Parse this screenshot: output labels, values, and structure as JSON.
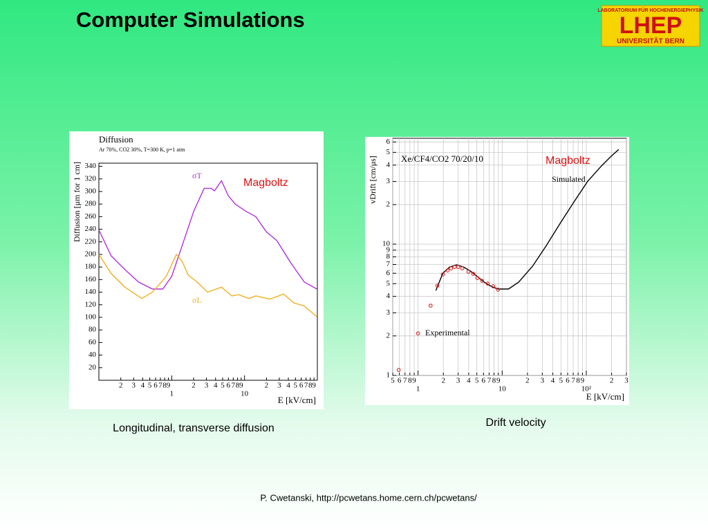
{
  "title": "Computer Simulations",
  "logo": {
    "top": "LABORATORIUM FÜR HOCHENERGIEPHYSIK",
    "main": "LHEP",
    "bottom": "UNIVERSITÄT BERN"
  },
  "captions": [
    "Longitudinal, transverse diffusion",
    "Drift velocity"
  ],
  "footer": "P. Cwetanski, http://pcwetans.home.cern.ch/pcwetans/",
  "chart_data": [
    {
      "type": "line",
      "title": "Diffusion",
      "subtitle": "Ar 70%, CO2 30%, T=300 K, p=1 atm",
      "ylabel": "Diffusion [μm for 1 cm]",
      "xlabel": "E [kV/cm]",
      "xlog": true,
      "ylog": false,
      "grid": false,
      "xlim": [
        0.1,
        100
      ],
      "ylim": [
        0,
        345
      ],
      "xticks": [
        {
          "value": 0.2,
          "label": "2"
        },
        {
          "value": 0.3,
          "label": "3"
        },
        {
          "value": 0.4,
          "label": "4"
        },
        {
          "value": 0.5,
          "label": "5"
        },
        {
          "value": 0.6,
          "label": "6"
        },
        {
          "value": 0.7,
          "label": "7"
        },
        {
          "value": 0.8,
          "label": "8"
        },
        {
          "value": 0.9,
          "label": "9"
        },
        1,
        2,
        3,
        4,
        5,
        6,
        7,
        8,
        9,
        10,
        {
          "value": 20,
          "label": "2"
        },
        {
          "value": 30,
          "label": "3"
        },
        {
          "value": 40,
          "label": "4"
        },
        {
          "value": 50,
          "label": "5"
        },
        {
          "value": 60,
          "label": "6"
        },
        {
          "value": 70,
          "label": "7"
        },
        {
          "value": 80,
          "label": "8"
        },
        {
          "value": 90,
          "label": "9"
        }
      ],
      "yticks": [
        20,
        40,
        60,
        80,
        100,
        120,
        140,
        160,
        180,
        200,
        220,
        240,
        260,
        280,
        300,
        320,
        340
      ],
      "annotations": [
        "Magboltz"
      ],
      "series": [
        {
          "name": "σT",
          "color": "#b030e0",
          "mode": "line",
          "x": [
            0.1,
            0.147,
            0.227,
            0.351,
            0.543,
            0.753,
            1,
            1.45,
            2.01,
            2.79,
            3.47,
            3.87,
            4.82,
            6.0,
            7.45,
            10.3,
            14.3,
            19.9,
            27.7,
            42.9,
            66.3,
            98.5
          ],
          "values": [
            239,
            198,
            176,
            156,
            145,
            145,
            165,
            220,
            269,
            305,
            305,
            301,
            317,
            293,
            280,
            269,
            260,
            236,
            222,
            187,
            156,
            145
          ]
        },
        {
          "name": "σL",
          "color": "#f0b020",
          "mode": "line",
          "x": [
            0.1,
            0.147,
            0.227,
            0.39,
            0.543,
            0.84,
            1.16,
            1.39,
            1.69,
            2.24,
            3.11,
            4.82,
            6.7,
            8.3,
            11.5,
            14.3,
            22.2,
            34.4,
            47.6,
            66.3,
            98.5
          ],
          "values": [
            200,
            170,
            148,
            130,
            140,
            165,
            200,
            189,
            167,
            156,
            140,
            148,
            134,
            136,
            130,
            134,
            129,
            137,
            123,
            118,
            101
          ]
        }
      ]
    },
    {
      "type": "line",
      "title": "Xe/CF4/CO2 70/20/10",
      "ylabel": "vDrift [cm/μs]",
      "xlabel": "E [kV/cm]",
      "xlog": true,
      "ylog": true,
      "grid": true,
      "xlim": [
        0.5,
        300
      ],
      "ylim": [
        1,
        64
      ],
      "xticks": [
        {
          "value": 0.5,
          "label": "5"
        },
        {
          "value": 0.6,
          "label": "6"
        },
        {
          "value": 0.7,
          "label": "7"
        },
        {
          "value": 0.8,
          "label": "8"
        },
        {
          "value": 0.9,
          "label": "9"
        },
        1,
        2,
        3,
        4,
        5,
        6,
        7,
        8,
        9,
        10,
        {
          "value": 20,
          "label": "2"
        },
        {
          "value": 30,
          "label": "3"
        },
        {
          "value": 40,
          "label": "4"
        },
        {
          "value": 50,
          "label": "5"
        },
        {
          "value": 60,
          "label": "6"
        },
        {
          "value": 70,
          "label": "7"
        },
        {
          "value": 80,
          "label": "8"
        },
        {
          "value": 90,
          "label": "9"
        },
        {
          "value": 100,
          "label": "10²"
        },
        {
          "value": 200,
          "label": "2"
        },
        {
          "value": 300,
          "label": "3"
        }
      ],
      "yticks": [
        1,
        2,
        3,
        4,
        5,
        6,
        7,
        8,
        9,
        10,
        {
          "value": 20,
          "label": "2"
        },
        {
          "value": 30,
          "label": "3"
        },
        {
          "value": 40,
          "label": "4"
        },
        {
          "value": 50,
          "label": "5"
        },
        {
          "value": 60,
          "label": "6"
        }
      ],
      "annotations": [
        "Magboltz"
      ],
      "series": [
        {
          "name": "Simulated",
          "color": "#000000",
          "mode": "line",
          "x": [
            1.63,
            1.97,
            2.38,
            2.88,
            3.47,
            4.2,
            5.07,
            6.12,
            7.39,
            8.93,
            11.9,
            15.7,
            23.0,
            33.5,
            48.9,
            71.2,
            104,
            151,
            201,
            243
          ],
          "values": [
            4.44,
            6.0,
            6.7,
            6.95,
            6.7,
            6.23,
            5.66,
            5.13,
            4.77,
            4.55,
            4.55,
            5.13,
            6.79,
            9.76,
            14.4,
            20.9,
            30.1,
            39.3,
            47.2,
            52.6
          ]
        },
        {
          "name": "Experimental",
          "color": "#e02020",
          "mode": "markers",
          "x": [
            0.589,
            1,
            1.41,
            1.7,
            1.97,
            2.25,
            2.47,
            2.72,
            2.99,
            3.35,
            3.97,
            4.53,
            5.07,
            5.78,
            6.73,
            7.82,
            8.93
          ],
          "values": [
            1.1,
            2.09,
            3.4,
            4.83,
            5.87,
            6.31,
            6.54,
            6.7,
            6.7,
            6.54,
            6.16,
            5.94,
            5.52,
            5.26,
            5.01,
            4.77,
            4.5
          ]
        }
      ]
    }
  ]
}
